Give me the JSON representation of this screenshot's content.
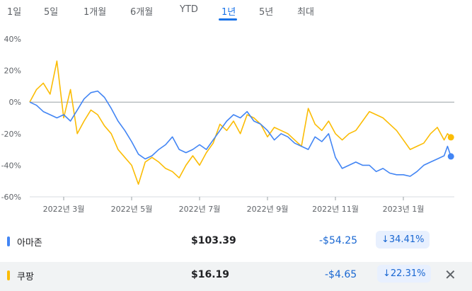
{
  "range_tabs": [
    {
      "label": "1일",
      "active": false
    },
    {
      "label": "5일",
      "active": false
    },
    {
      "label": "1개월",
      "active": false
    },
    {
      "label": "6개월",
      "active": false
    },
    {
      "label": "YTD",
      "active": false
    },
    {
      "label": "1년",
      "active": true
    },
    {
      "label": "5년",
      "active": false
    },
    {
      "label": "최대",
      "active": false
    }
  ],
  "colors": {
    "amazon": "#4285f4",
    "coupang": "#fbbc04",
    "accent": "#1a73e8",
    "zero_line": "#9aa0a6"
  },
  "chart_data": {
    "type": "line",
    "y_ticks": [
      "40%",
      "20%",
      "0%",
      "-20%",
      "-40%",
      "-60%"
    ],
    "ylim": [
      -60,
      40
    ],
    "x_ticks": [
      "2022년 3월",
      "2022년 5월",
      "2022년 7월",
      "2022년 9월",
      "2022년 11월",
      "2023년 1월"
    ],
    "x_tick_positions": [
      1,
      3,
      5,
      7,
      9,
      11
    ],
    "x_range": [
      0,
      12.5
    ],
    "series": [
      {
        "name": "아마존",
        "color": "#4285f4",
        "x": [
          0,
          0.2,
          0.4,
          0.6,
          0.8,
          1.0,
          1.2,
          1.4,
          1.6,
          1.8,
          2.0,
          2.2,
          2.4,
          2.6,
          2.8,
          3.0,
          3.2,
          3.4,
          3.6,
          3.8,
          4.0,
          4.2,
          4.4,
          4.6,
          4.8,
          5.0,
          5.2,
          5.4,
          5.6,
          5.8,
          6.0,
          6.2,
          6.4,
          6.6,
          6.8,
          7.0,
          7.2,
          7.4,
          7.6,
          7.8,
          8.0,
          8.2,
          8.4,
          8.6,
          8.8,
          9.0,
          9.2,
          9.4,
          9.6,
          9.8,
          10.0,
          10.2,
          10.4,
          10.6,
          10.8,
          11.0,
          11.2,
          11.4,
          11.6,
          11.8,
          12.0,
          12.2,
          12.3,
          12.4
        ],
        "y": [
          0,
          -2,
          -6,
          -8,
          -10,
          -8,
          -12,
          -5,
          2,
          6,
          7,
          3,
          -4,
          -12,
          -18,
          -25,
          -33,
          -36,
          -34,
          -30,
          -27,
          -22,
          -30,
          -32,
          -30,
          -27,
          -30,
          -24,
          -18,
          -12,
          -8,
          -10,
          -6,
          -12,
          -14,
          -18,
          -24,
          -20,
          -22,
          -26,
          -28,
          -30,
          -22,
          -25,
          -20,
          -35,
          -42,
          -40,
          -38,
          -40,
          -40,
          -44,
          -42,
          -45,
          -46,
          -46,
          -47,
          -44,
          -40,
          -38,
          -36,
          -34,
          -28,
          -34.4
        ]
      },
      {
        "name": "쿠팡",
        "color": "#fbbc04",
        "x": [
          0,
          0.2,
          0.4,
          0.6,
          0.8,
          1.0,
          1.2,
          1.4,
          1.6,
          1.8,
          2.0,
          2.2,
          2.4,
          2.6,
          2.8,
          3.0,
          3.2,
          3.4,
          3.6,
          3.8,
          4.0,
          4.2,
          4.4,
          4.6,
          4.8,
          5.0,
          5.2,
          5.4,
          5.6,
          5.8,
          6.0,
          6.2,
          6.4,
          6.6,
          6.8,
          7.0,
          7.2,
          7.4,
          7.6,
          7.8,
          8.0,
          8.2,
          8.4,
          8.6,
          8.8,
          9.0,
          9.2,
          9.4,
          9.6,
          9.8,
          10.0,
          10.2,
          10.4,
          10.6,
          10.8,
          11.0,
          11.2,
          11.4,
          11.6,
          11.8,
          12.0,
          12.2,
          12.3,
          12.4
        ],
        "y": [
          0,
          8,
          12,
          5,
          26,
          -10,
          8,
          -20,
          -12,
          -5,
          -8,
          -15,
          -20,
          -30,
          -35,
          -40,
          -52,
          -38,
          -35,
          -38,
          -42,
          -44,
          -48,
          -40,
          -34,
          -40,
          -32,
          -26,
          -14,
          -18,
          -12,
          -20,
          -8,
          -10,
          -14,
          -22,
          -16,
          -18,
          -20,
          -24,
          -28,
          -4,
          -14,
          -18,
          -12,
          -20,
          -24,
          -20,
          -18,
          -12,
          -6,
          -8,
          -10,
          -14,
          -18,
          -24,
          -30,
          -28,
          -26,
          -20,
          -16,
          -24,
          -20,
          -22.3
        ]
      }
    ]
  },
  "legend": [
    {
      "name": "아마존",
      "price": "$103.39",
      "change": "-$54.25",
      "pct": "↓34.41%",
      "color": "#4285f4"
    },
    {
      "name": "쿠팡",
      "price": "$16.19",
      "change": "-$4.65",
      "pct": "↓22.31%",
      "color": "#fbbc04"
    }
  ],
  "close_icon": "✕"
}
